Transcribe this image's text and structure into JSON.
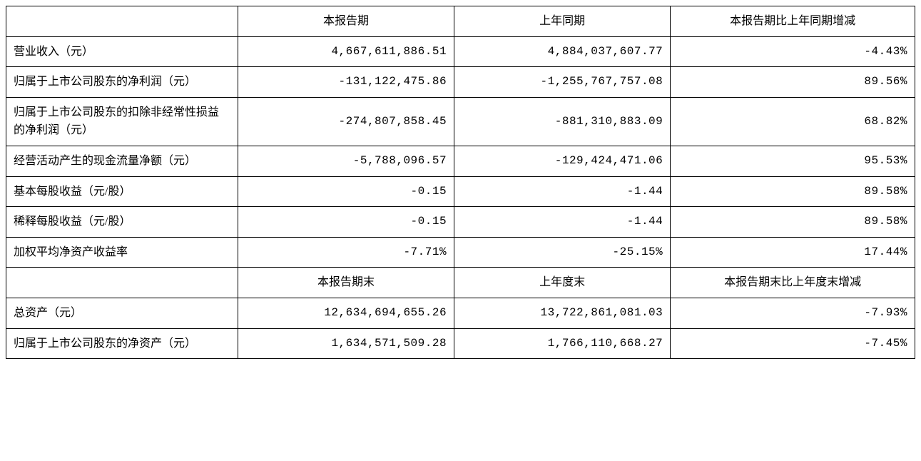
{
  "table": {
    "section1": {
      "headers": [
        "本报告期",
        "上年同期",
        "本报告期比上年同期增减"
      ],
      "rows": [
        {
          "label": "营业收入（元）",
          "c1": "4,667,611,886.51",
          "c2": "4,884,037,607.77",
          "c3": "-4.43%"
        },
        {
          "label": "归属于上市公司股东的净利润（元）",
          "c1": "-131,122,475.86",
          "c2": "-1,255,767,757.08",
          "c3": "89.56%"
        },
        {
          "label": "归属于上市公司股东的扣除非经常性损益的净利润（元）",
          "c1": "-274,807,858.45",
          "c2": "-881,310,883.09",
          "c3": "68.82%"
        },
        {
          "label": "经营活动产生的现金流量净额（元）",
          "c1": "-5,788,096.57",
          "c2": "-129,424,471.06",
          "c3": "95.53%"
        },
        {
          "label": "基本每股收益（元/股）",
          "c1": "-0.15",
          "c2": "-1.44",
          "c3": "89.58%"
        },
        {
          "label": "稀释每股收益（元/股）",
          "c1": "-0.15",
          "c2": "-1.44",
          "c3": "89.58%"
        },
        {
          "label": "加权平均净资产收益率",
          "c1": "-7.71%",
          "c2": "-25.15%",
          "c3": "17.44%"
        }
      ]
    },
    "section2": {
      "headers": [
        "本报告期末",
        "上年度末",
        "本报告期末比上年度末增减"
      ],
      "rows": [
        {
          "label": "总资产（元）",
          "c1": "12,634,694,655.26",
          "c2": "13,722,861,081.03",
          "c3": "-7.93%"
        },
        {
          "label": "归属于上市公司股东的净资产（元）",
          "c1": "1,634,571,509.28",
          "c2": "1,766,110,668.27",
          "c3": "-7.45%"
        }
      ]
    }
  },
  "style": {
    "border_color": "#000000",
    "background_color": "#ffffff",
    "text_color": "#000000",
    "font_size_pt": 12,
    "font_family_label": "SimSun",
    "font_family_number": "Courier New",
    "col_widths_pct": [
      25.5,
      23.8,
      23.8,
      26.9
    ],
    "header_align": "center",
    "label_align": "left",
    "number_align": "right"
  }
}
